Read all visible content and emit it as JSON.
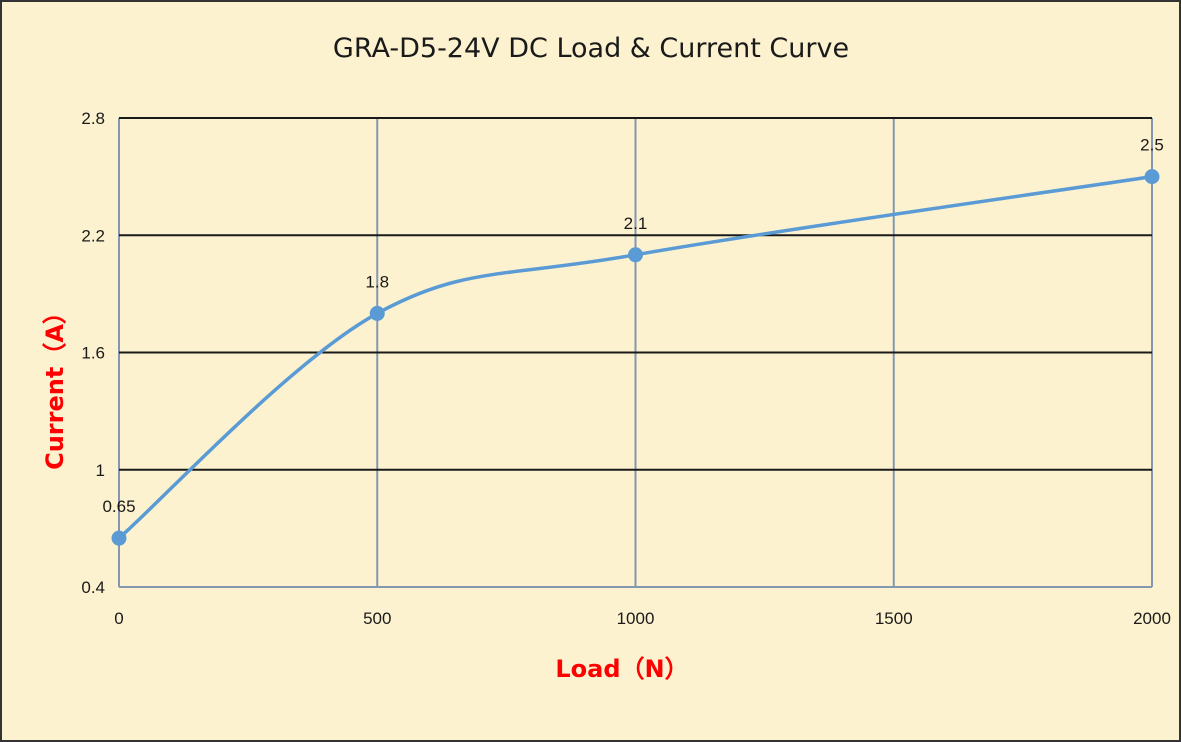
{
  "colors": {
    "background": "#fdf2cf",
    "border": "#333333",
    "series": "#5b9bd5",
    "h_grid": "#1a1a1a",
    "v_grid": "#8497b0",
    "axis_title": "#ff0000"
  },
  "chart_data": {
    "type": "line",
    "smooth": true,
    "title": "GRA-D5-24V DC Load & Current Curve",
    "xlabel": "Load（N）",
    "ylabel": "Current（A）",
    "xlim": [
      0,
      2000
    ],
    "ylim": [
      0.4,
      2.8
    ],
    "xticks": [
      0,
      500,
      1000,
      1500,
      2000
    ],
    "xtick_labels": [
      "0",
      "500",
      "1000",
      "1500",
      "2000"
    ],
    "yticks": [
      0.4,
      1.0,
      1.6,
      2.2,
      2.8
    ],
    "ytick_labels": [
      "0.4",
      "1",
      "1.6",
      "2.2",
      "2.8"
    ],
    "grid": true,
    "legend": "none",
    "series": [
      {
        "x": [
          0,
          500,
          1000,
          2000
        ],
        "y": [
          0.65,
          1.8,
          2.1,
          2.5
        ],
        "labels": [
          "0.65",
          "1.8",
          "2.1",
          "2.5"
        ]
      }
    ]
  }
}
